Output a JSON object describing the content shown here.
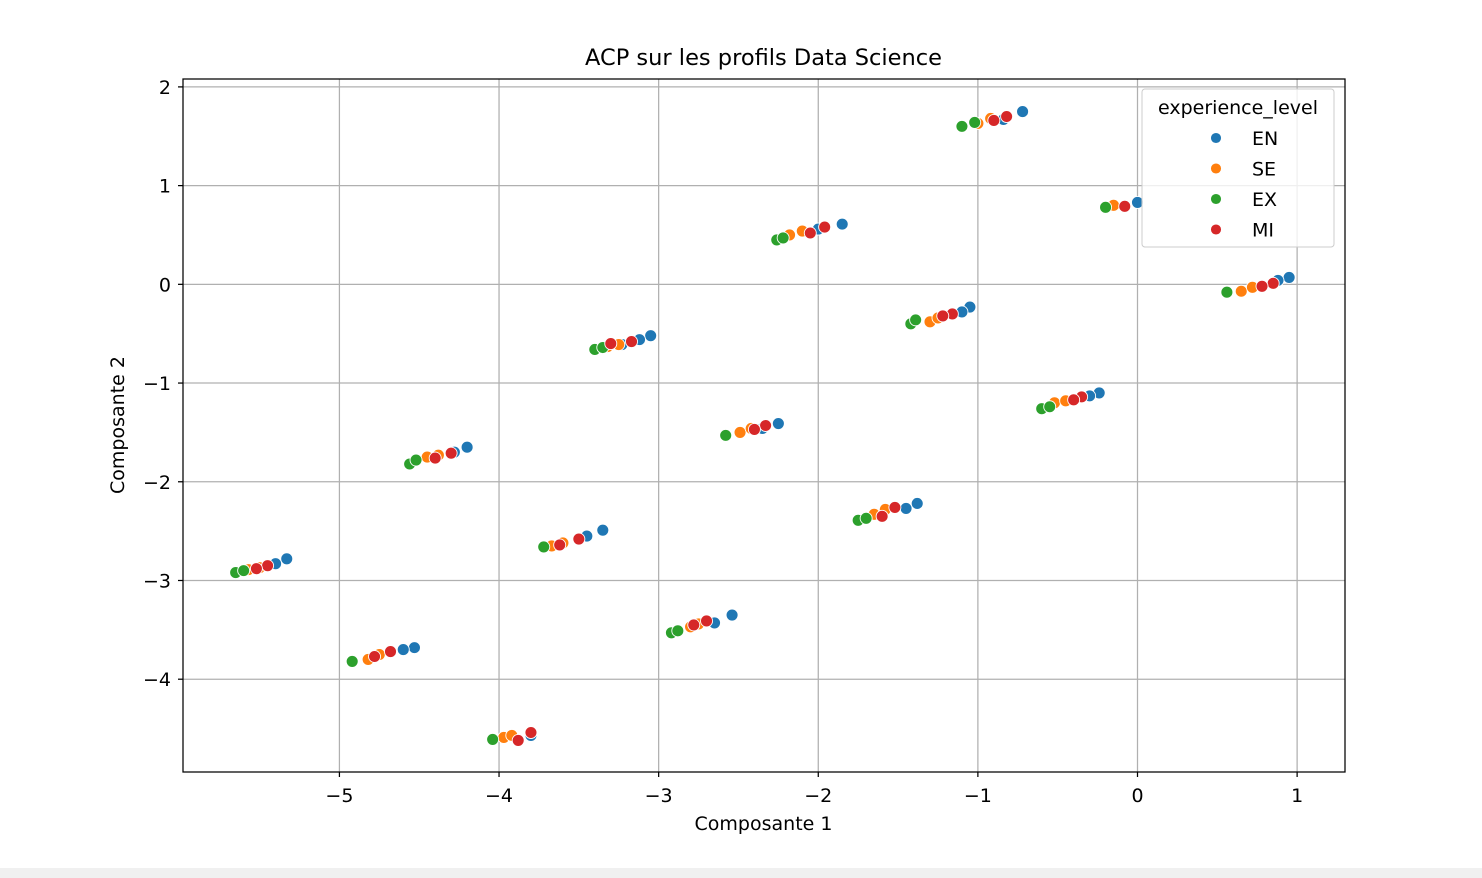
{
  "chart_data": {
    "type": "scatter",
    "title": "ACP sur les profils Data Science",
    "xlabel": "Composante 1",
    "ylabel": "Composante 2",
    "xlim": [
      -5.98,
      1.3
    ],
    "ylim": [
      -4.94,
      2.08
    ],
    "xticks": [
      {
        "value": -5,
        "label": "−5"
      },
      {
        "value": -4,
        "label": "−4"
      },
      {
        "value": -3,
        "label": "−3"
      },
      {
        "value": -2,
        "label": "−2"
      },
      {
        "value": -1,
        "label": "−1"
      },
      {
        "value": 0,
        "label": "0"
      },
      {
        "value": 1,
        "label": "1"
      }
    ],
    "yticks": [
      {
        "value": 2,
        "label": "2"
      },
      {
        "value": 1,
        "label": "1"
      },
      {
        "value": 0,
        "label": "0"
      },
      {
        "value": -1,
        "label": "−1"
      },
      {
        "value": -2,
        "label": "−2"
      },
      {
        "value": -3,
        "label": "−3"
      },
      {
        "value": -4,
        "label": "−4"
      }
    ],
    "grid": true,
    "legend": {
      "title": "experience_level",
      "placement": "top-right"
    },
    "series": [
      {
        "name": "EN",
        "color": "#1f77b4",
        "points": [
          [
            -0.72,
            1.75
          ],
          [
            -0.84,
            1.67
          ],
          [
            0.0,
            0.83
          ],
          [
            0.95,
            0.07
          ],
          [
            0.88,
            0.04
          ],
          [
            -1.85,
            0.61
          ],
          [
            -2.0,
            0.56
          ],
          [
            -1.05,
            -0.23
          ],
          [
            -1.1,
            -0.28
          ],
          [
            -3.05,
            -0.52
          ],
          [
            -3.12,
            -0.56
          ],
          [
            -3.23,
            -0.61
          ],
          [
            -0.24,
            -1.1
          ],
          [
            -0.3,
            -1.13
          ],
          [
            -4.2,
            -1.65
          ],
          [
            -4.28,
            -1.7
          ],
          [
            -2.25,
            -1.41
          ],
          [
            -2.35,
            -1.46
          ],
          [
            -1.38,
            -2.22
          ],
          [
            -1.45,
            -2.27
          ],
          [
            -5.33,
            -2.78
          ],
          [
            -5.4,
            -2.83
          ],
          [
            -3.35,
            -2.49
          ],
          [
            -3.45,
            -2.55
          ],
          [
            -4.53,
            -3.68
          ],
          [
            -4.6,
            -3.7
          ],
          [
            -2.54,
            -3.35
          ],
          [
            -2.65,
            -3.43
          ],
          [
            -3.8,
            -4.57
          ]
        ]
      },
      {
        "name": "SE",
        "color": "#ff7f0e",
        "points": [
          [
            -1.0,
            1.63
          ],
          [
            -0.92,
            1.68
          ],
          [
            -0.15,
            0.8
          ],
          [
            0.65,
            -0.07
          ],
          [
            0.72,
            -0.03
          ],
          [
            -2.18,
            0.5
          ],
          [
            -2.1,
            0.54
          ],
          [
            -1.3,
            -0.38
          ],
          [
            -1.25,
            -0.34
          ],
          [
            -3.32,
            -0.63
          ],
          [
            -3.25,
            -0.61
          ],
          [
            -0.52,
            -1.2
          ],
          [
            -0.45,
            -1.18
          ],
          [
            -4.45,
            -1.75
          ],
          [
            -4.38,
            -1.73
          ],
          [
            -2.49,
            -1.5
          ],
          [
            -2.42,
            -1.46
          ],
          [
            -1.65,
            -2.33
          ],
          [
            -1.58,
            -2.28
          ],
          [
            -5.57,
            -2.89
          ],
          [
            -5.5,
            -2.87
          ],
          [
            -3.67,
            -2.65
          ],
          [
            -3.6,
            -2.62
          ],
          [
            -4.82,
            -3.8
          ],
          [
            -4.75,
            -3.75
          ],
          [
            -2.8,
            -3.47
          ],
          [
            -2.75,
            -3.44
          ],
          [
            -3.97,
            -4.59
          ],
          [
            -3.92,
            -4.57
          ]
        ]
      },
      {
        "name": "EX",
        "color": "#2ca02c",
        "points": [
          [
            -1.1,
            1.6
          ],
          [
            -1.02,
            1.64
          ],
          [
            -0.2,
            0.78
          ],
          [
            0.56,
            -0.08
          ],
          [
            -2.26,
            0.45
          ],
          [
            -2.22,
            0.47
          ],
          [
            -1.42,
            -0.4
          ],
          [
            -1.39,
            -0.36
          ],
          [
            -3.4,
            -0.66
          ],
          [
            -3.35,
            -0.64
          ],
          [
            -0.6,
            -1.26
          ],
          [
            -0.55,
            -1.24
          ],
          [
            -4.56,
            -1.82
          ],
          [
            -4.52,
            -1.78
          ],
          [
            -2.58,
            -1.53
          ],
          [
            -1.75,
            -2.39
          ],
          [
            -1.7,
            -2.37
          ],
          [
            -5.65,
            -2.92
          ],
          [
            -5.6,
            -2.9
          ],
          [
            -3.72,
            -2.66
          ],
          [
            -4.92,
            -3.82
          ],
          [
            -2.92,
            -3.53
          ],
          [
            -2.88,
            -3.51
          ],
          [
            -4.04,
            -4.61
          ]
        ]
      },
      {
        "name": "MI",
        "color": "#d62728",
        "points": [
          [
            -0.82,
            1.7
          ],
          [
            -0.9,
            1.66
          ],
          [
            -0.08,
            0.79
          ],
          [
            0.85,
            0.01
          ],
          [
            0.78,
            -0.02
          ],
          [
            -1.96,
            0.58
          ],
          [
            -2.05,
            0.52
          ],
          [
            -1.16,
            -0.3
          ],
          [
            -1.22,
            -0.32
          ],
          [
            -3.17,
            -0.58
          ],
          [
            -3.3,
            -0.6
          ],
          [
            -0.35,
            -1.14
          ],
          [
            -0.4,
            -1.17
          ],
          [
            -4.3,
            -1.71
          ],
          [
            -4.4,
            -1.76
          ],
          [
            -2.33,
            -1.43
          ],
          [
            -2.4,
            -1.47
          ],
          [
            -1.52,
            -2.26
          ],
          [
            -1.6,
            -2.35
          ],
          [
            -5.45,
            -2.85
          ],
          [
            -5.52,
            -2.88
          ],
          [
            -3.5,
            -2.58
          ],
          [
            -3.62,
            -2.64
          ],
          [
            -4.68,
            -3.72
          ],
          [
            -4.78,
            -3.77
          ],
          [
            -2.7,
            -3.41
          ],
          [
            -2.78,
            -3.45
          ],
          [
            -3.88,
            -4.62
          ],
          [
            -3.8,
            -4.54
          ]
        ]
      }
    ]
  }
}
